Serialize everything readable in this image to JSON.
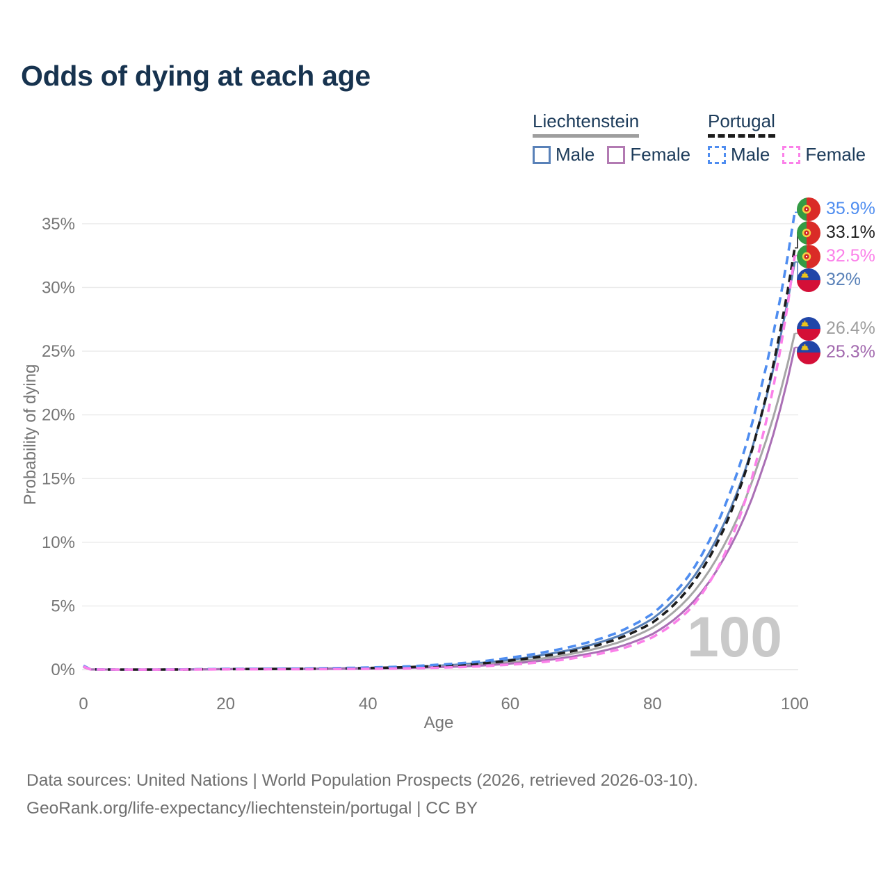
{
  "title": "Odds of dying at each age",
  "watermark": "100",
  "legend": {
    "groups": [
      {
        "name": "Liechtenstein",
        "line_style": "solid",
        "underline_color": "#9e9e9e",
        "items": [
          {
            "label": "Male",
            "color": "#5981b8"
          },
          {
            "label": "Female",
            "color": "#b27ab2"
          }
        ]
      },
      {
        "name": "Portugal",
        "line_style": "dashed",
        "underline_color": "#1c1c1c",
        "items": [
          {
            "label": "Male",
            "color": "#4f8df0"
          },
          {
            "label": "Female",
            "color": "#fb80e9"
          }
        ]
      }
    ]
  },
  "chart_data": {
    "type": "line",
    "title": "Odds of dying at each age",
    "xlabel": "Age",
    "ylabel": "Probability of dying",
    "xlim": [
      0,
      100
    ],
    "ylim_pct": [
      0,
      37
    ],
    "grid": "horizontal",
    "x_tick_values": [
      0,
      20,
      40,
      60,
      80,
      100
    ],
    "x_tick_labels": [
      "0",
      "20",
      "40",
      "60",
      "80",
      "100"
    ],
    "y_tick_values": [
      0,
      5,
      10,
      15,
      20,
      25,
      30,
      35
    ],
    "y_tick_labels": [
      "0%",
      "5%",
      "10%",
      "15%",
      "20%",
      "25%",
      "30%",
      "35%"
    ],
    "ages": [
      0,
      1,
      5,
      10,
      20,
      30,
      40,
      45,
      50,
      55,
      60,
      65,
      70,
      75,
      80,
      85,
      90,
      95,
      100
    ],
    "series": [
      {
        "name": "Portugal Male",
        "country": "portugal",
        "sex": "male",
        "line_style": "dashed",
        "color": "#4f8df0",
        "label_color": "#4f8df0",
        "end_label": "35.9%",
        "end_value_pct": 35.9,
        "values_pct": [
          0.32,
          0.03,
          0.01,
          0.012,
          0.07,
          0.09,
          0.17,
          0.25,
          0.4,
          0.6,
          0.95,
          1.4,
          2.0,
          2.9,
          4.4,
          7.3,
          12.6,
          21.5,
          35.9
        ]
      },
      {
        "name": "Portugal",
        "country": "portugal",
        "sex": "both",
        "line_style": "dashed",
        "color": "#1c1c1c",
        "label_color": "#212121",
        "end_label": "33.1%",
        "end_value_pct": 33.1,
        "values_pct": [
          0.28,
          0.025,
          0.009,
          0.01,
          0.05,
          0.07,
          0.13,
          0.19,
          0.3,
          0.46,
          0.72,
          1.1,
          1.6,
          2.4,
          3.7,
          6.3,
          11.0,
          19.3,
          33.1
        ]
      },
      {
        "name": "Portugal Female",
        "country": "portugal",
        "sex": "female",
        "line_style": "dashed",
        "color": "#fb80e9",
        "label_color": "#fb80e9",
        "end_label": "32.5%",
        "end_value_pct": 32.5,
        "values_pct": [
          0.25,
          0.02,
          0.007,
          0.008,
          0.03,
          0.04,
          0.07,
          0.1,
          0.16,
          0.25,
          0.4,
          0.63,
          1.0,
          1.55,
          2.55,
          4.6,
          8.9,
          17.2,
          32.5
        ]
      },
      {
        "name": "Liechtenstein Male",
        "country": "liechtenstein",
        "sex": "male",
        "line_style": "solid",
        "color": "#5981b8",
        "label_color": "#5981b8",
        "end_label": "32%",
        "end_value_pct": 32.0,
        "values_pct": [
          0.25,
          0.02,
          0.01,
          0.01,
          0.06,
          0.08,
          0.14,
          0.2,
          0.32,
          0.5,
          0.78,
          1.2,
          1.75,
          2.6,
          4.0,
          6.7,
          11.4,
          19.3,
          32.0
        ]
      },
      {
        "name": "Liechtenstein",
        "country": "liechtenstein",
        "sex": "both",
        "line_style": "solid",
        "color": "#a6a6a6",
        "label_color": "#9e9e9e",
        "end_label": "26.4%",
        "end_value_pct": 26.4,
        "values_pct": [
          0.22,
          0.02,
          0.008,
          0.009,
          0.045,
          0.06,
          0.11,
          0.16,
          0.25,
          0.38,
          0.6,
          0.92,
          1.4,
          2.1,
          3.3,
          5.6,
          9.7,
          16.4,
          26.4
        ]
      },
      {
        "name": "Liechtenstein Female",
        "country": "liechtenstein",
        "sex": "female",
        "line_style": "solid",
        "color": "#aa6fb5",
        "label_color": "#a269ae",
        "end_label": "25.3%",
        "end_value_pct": 25.3,
        "values_pct": [
          0.2,
          0.018,
          0.007,
          0.008,
          0.035,
          0.05,
          0.09,
          0.13,
          0.2,
          0.3,
          0.48,
          0.75,
          1.15,
          1.75,
          2.8,
          4.9,
          8.7,
          15.0,
          25.3
        ]
      }
    ]
  },
  "flags": {
    "portugal": {
      "green": "#349b44",
      "red": "#da2b27",
      "emblem_yellow": "#f3cf45",
      "emblem_red": "#cf2027"
    },
    "liechtenstein": {
      "blue": "#2146a8",
      "red": "#d40f37",
      "crown": "#edc419"
    }
  },
  "footer": {
    "line1": "Data sources: United Nations | World Population Prospects (2026, retrieved 2026-03-10).",
    "line2": "GeoRank.org/life-expectancy/liechtenstein/portugal | CC BY"
  }
}
